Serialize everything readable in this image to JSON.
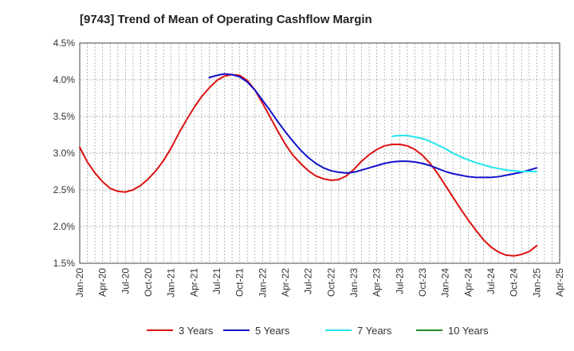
{
  "chart_data": {
    "type": "line",
    "title": "[9743]  Trend of Mean of Operating Cashflow Margin",
    "xlabel": "",
    "ylabel": "",
    "ylim": [
      1.5,
      4.5
    ],
    "y_ticks": [
      1.5,
      2.0,
      2.5,
      3.0,
      3.5,
      4.0,
      4.5
    ],
    "y_tick_labels": [
      "1.5%",
      "2.0%",
      "2.5%",
      "3.0%",
      "3.5%",
      "4.0%",
      "4.5%"
    ],
    "x_range_months": [
      0,
      63
    ],
    "x_tick_labels": [
      "Jan-20",
      "Apr-20",
      "Jul-20",
      "Oct-20",
      "Jan-21",
      "Apr-21",
      "Jul-21",
      "Oct-21",
      "Jan-22",
      "Apr-22",
      "Jul-22",
      "Oct-22",
      "Jan-23",
      "Apr-23",
      "Jul-23",
      "Oct-23",
      "Jan-24",
      "Apr-24",
      "Jul-24",
      "Oct-24",
      "Jan-25",
      "Apr-25"
    ],
    "grid": true,
    "legend_position": "bottom",
    "series": [
      {
        "name": "3 Years",
        "color": "#dd1111",
        "points": [
          [
            0,
            3.08
          ],
          [
            1,
            2.88
          ],
          [
            2,
            2.73
          ],
          [
            3,
            2.61
          ],
          [
            4,
            2.52
          ],
          [
            5,
            2.48
          ],
          [
            6,
            2.47
          ],
          [
            7,
            2.5
          ],
          [
            8,
            2.56
          ],
          [
            9,
            2.65
          ],
          [
            10,
            2.76
          ],
          [
            11,
            2.9
          ],
          [
            12,
            3.07
          ],
          [
            13,
            3.27
          ],
          [
            14,
            3.45
          ],
          [
            15,
            3.62
          ],
          [
            16,
            3.77
          ],
          [
            17,
            3.89
          ],
          [
            18,
            3.99
          ],
          [
            19,
            4.05
          ],
          [
            20,
            4.07
          ],
          [
            21,
            4.06
          ],
          [
            22,
            3.99
          ],
          [
            23,
            3.86
          ],
          [
            24,
            3.68
          ],
          [
            25,
            3.49
          ],
          [
            26,
            3.3
          ],
          [
            27,
            3.12
          ],
          [
            28,
            2.97
          ],
          [
            29,
            2.86
          ],
          [
            30,
            2.76
          ],
          [
            31,
            2.69
          ],
          [
            32,
            2.65
          ],
          [
            33,
            2.63
          ],
          [
            34,
            2.64
          ],
          [
            35,
            2.69
          ],
          [
            36,
            2.78
          ],
          [
            37,
            2.89
          ],
          [
            38,
            2.98
          ],
          [
            39,
            3.05
          ],
          [
            40,
            3.1
          ],
          [
            41,
            3.12
          ],
          [
            42,
            3.12
          ],
          [
            43,
            3.1
          ],
          [
            44,
            3.05
          ],
          [
            45,
            2.97
          ],
          [
            46,
            2.86
          ],
          [
            47,
            2.72
          ],
          [
            48,
            2.56
          ],
          [
            49,
            2.4
          ],
          [
            50,
            2.24
          ],
          [
            51,
            2.09
          ],
          [
            52,
            1.95
          ],
          [
            53,
            1.82
          ],
          [
            54,
            1.72
          ],
          [
            55,
            1.65
          ],
          [
            56,
            1.61
          ],
          [
            57,
            1.6
          ],
          [
            58,
            1.62
          ],
          [
            59,
            1.66
          ],
          [
            60,
            1.74
          ]
        ]
      },
      {
        "name": "5 Years",
        "color": "#1111cc",
        "points": [
          [
            17,
            4.03
          ],
          [
            18,
            4.06
          ],
          [
            19,
            4.08
          ],
          [
            20,
            4.07
          ],
          [
            21,
            4.04
          ],
          [
            22,
            3.97
          ],
          [
            23,
            3.86
          ],
          [
            24,
            3.72
          ],
          [
            25,
            3.58
          ],
          [
            26,
            3.43
          ],
          [
            27,
            3.29
          ],
          [
            28,
            3.16
          ],
          [
            29,
            3.04
          ],
          [
            30,
            2.94
          ],
          [
            31,
            2.86
          ],
          [
            32,
            2.8
          ],
          [
            33,
            2.76
          ],
          [
            34,
            2.74
          ],
          [
            35,
            2.73
          ],
          [
            36,
            2.74
          ],
          [
            37,
            2.77
          ],
          [
            38,
            2.8
          ],
          [
            39,
            2.83
          ],
          [
            40,
            2.86
          ],
          [
            41,
            2.88
          ],
          [
            42,
            2.89
          ],
          [
            43,
            2.89
          ],
          [
            44,
            2.88
          ],
          [
            45,
            2.86
          ],
          [
            46,
            2.83
          ],
          [
            47,
            2.79
          ],
          [
            48,
            2.75
          ],
          [
            49,
            2.72
          ],
          [
            50,
            2.7
          ],
          [
            51,
            2.68
          ],
          [
            52,
            2.67
          ],
          [
            53,
            2.67
          ],
          [
            54,
            2.67
          ],
          [
            55,
            2.68
          ],
          [
            56,
            2.7
          ],
          [
            57,
            2.72
          ],
          [
            58,
            2.74
          ],
          [
            59,
            2.77
          ],
          [
            60,
            2.8
          ]
        ]
      },
      {
        "name": "7 Years",
        "color": "#22e5ee",
        "points": [
          [
            41,
            3.23
          ],
          [
            42,
            3.24
          ],
          [
            43,
            3.24
          ],
          [
            44,
            3.22
          ],
          [
            45,
            3.2
          ],
          [
            46,
            3.16
          ],
          [
            47,
            3.11
          ],
          [
            48,
            3.06
          ],
          [
            49,
            3.0
          ],
          [
            50,
            2.95
          ],
          [
            51,
            2.91
          ],
          [
            52,
            2.87
          ],
          [
            53,
            2.84
          ],
          [
            54,
            2.81
          ],
          [
            55,
            2.79
          ],
          [
            56,
            2.77
          ],
          [
            57,
            2.76
          ],
          [
            58,
            2.75
          ],
          [
            59,
            2.75
          ],
          [
            60,
            2.75
          ]
        ]
      },
      {
        "name": "10 Years",
        "color": "#228822",
        "points": []
      }
    ]
  }
}
